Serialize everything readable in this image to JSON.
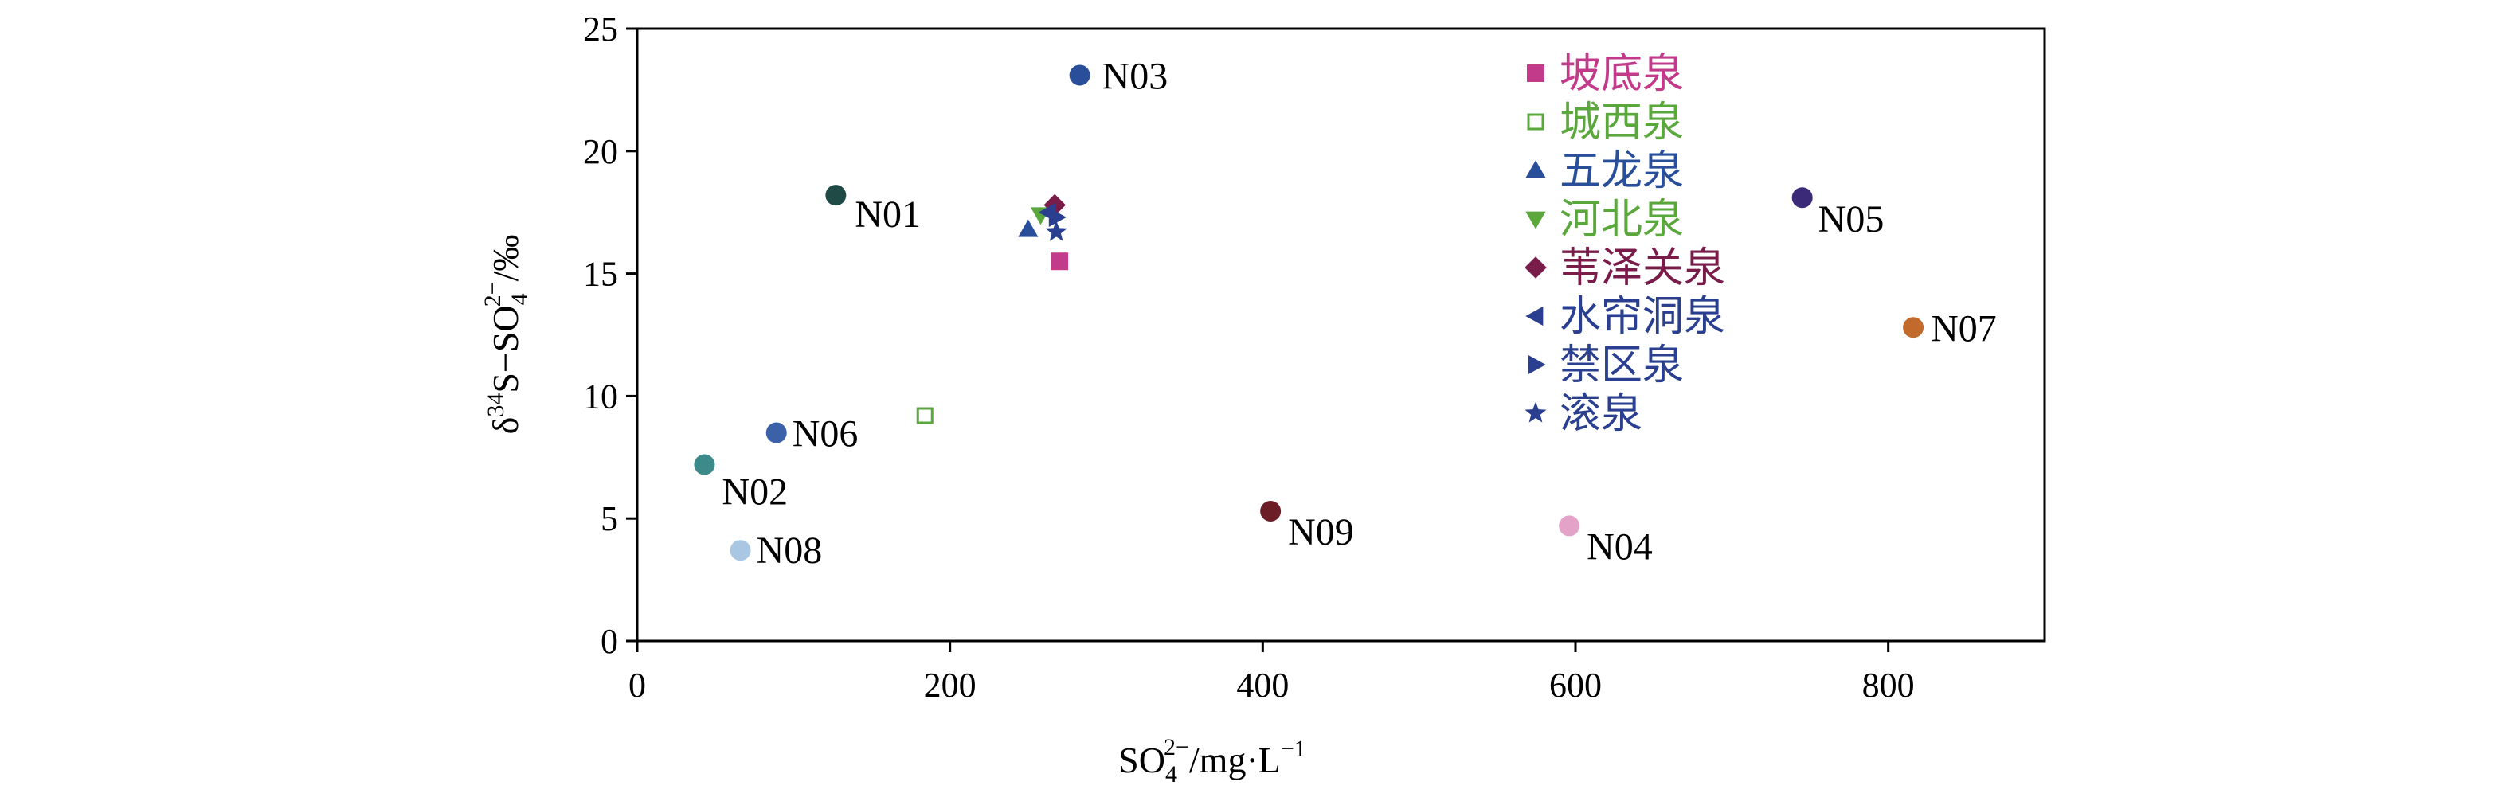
{
  "chart_data": {
    "type": "scatter",
    "title": "",
    "xlabel": {
      "base": "SO",
      "sub": "4",
      "sup": "2−",
      "unit": "/mg·L",
      "unit_sup": "−1"
    },
    "ylabel": {
      "delta": "δ",
      "sup34": "34",
      "mid": "S−SO",
      "sub": "4",
      "sup": "2−",
      "unit": "/‰"
    },
    "xlim": [
      0,
      900
    ],
    "ylim": [
      0,
      25
    ],
    "xticks": [
      0,
      200,
      400,
      600,
      800
    ],
    "yticks": [
      0,
      5,
      10,
      15,
      20,
      25
    ],
    "grid": false,
    "legend_position": "top-center",
    "groundwater_points": [
      {
        "label": "N01",
        "x": 127,
        "y": 18.2,
        "color": "#1f4a45"
      },
      {
        "label": "N02",
        "x": 43,
        "y": 7.2,
        "color": "#3c8a8a"
      },
      {
        "label": "N03",
        "x": 283,
        "y": 23.1,
        "color": "#2a4f9a"
      },
      {
        "label": "N04",
        "x": 596,
        "y": 4.7,
        "color": "#e3a2c8"
      },
      {
        "label": "N05",
        "x": 745,
        "y": 18.1,
        "color": "#3b2a78"
      },
      {
        "label": "N06",
        "x": 89,
        "y": 8.5,
        "color": "#3b62a8"
      },
      {
        "label": "N07",
        "x": 816,
        "y": 12.8,
        "color": "#c16a2c"
      },
      {
        "label": "N08",
        "x": 66,
        "y": 3.7,
        "color": "#a9c6e2"
      },
      {
        "label": "N09",
        "x": 405,
        "y": 5.3,
        "color": "#6b1e26"
      }
    ],
    "springs": [
      {
        "name": "坡底泉",
        "x": 270,
        "y": 15.5,
        "marker": "square",
        "color": "#c23b8b"
      },
      {
        "name": "城西泉",
        "x": 184,
        "y": 9.2,
        "marker": "square-open",
        "color": "#5aa83c"
      },
      {
        "name": "五龙泉",
        "x": 250,
        "y": 16.8,
        "marker": "triangle-up",
        "color": "#2a4f9a"
      },
      {
        "name": "河北泉",
        "x": 258,
        "y": 17.4,
        "marker": "triangle-down",
        "color": "#5aa83c"
      },
      {
        "name": "苇泽关泉",
        "x": 267,
        "y": 17.8,
        "marker": "diamond",
        "color": "#7a1c4a"
      },
      {
        "name": "水帘洞泉",
        "x": 263,
        "y": 17.5,
        "marker": "triangle-left",
        "color": "#2a3f8f"
      },
      {
        "name": "禁区泉",
        "x": 268,
        "y": 17.3,
        "marker": "triangle-right",
        "color": "#2a3f8f"
      },
      {
        "name": "滚泉",
        "x": 268,
        "y": 16.7,
        "marker": "star",
        "color": "#2a3f8f"
      }
    ]
  }
}
